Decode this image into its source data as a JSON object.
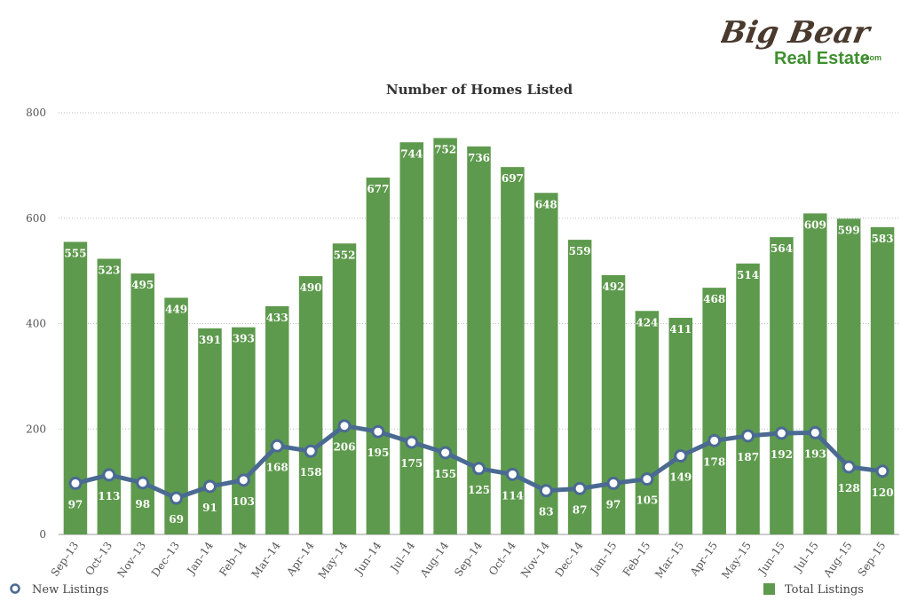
{
  "brand": {
    "logo_word1": "Big Bear",
    "logo_word2": "Real Estate",
    "logo_suffix": ".com",
    "color_brown": "#4a3a2e",
    "color_green": "#3f8f2f"
  },
  "chart_data": {
    "type": "bar",
    "title": "Number of Homes Listed",
    "categories": [
      "Sep–13",
      "Oct–13",
      "Nov–13",
      "Dec–13",
      "Jan–14",
      "Feb–14",
      "Mar–14",
      "Apr–14",
      "May–14",
      "Jun–14",
      "Jul–14",
      "Aug–14",
      "Sep–14",
      "Oct–14",
      "Nov–14",
      "Dec–14",
      "Jan–15",
      "Feb–15",
      "Mar–15",
      "Apr–15",
      "May–15",
      "Jun–15",
      "Jul–15",
      "Aug–15",
      "Sep–15"
    ],
    "series": [
      {
        "name": "Total Listings",
        "type": "bar",
        "color": "#5e9a4d",
        "values": [
          555,
          523,
          495,
          449,
          391,
          393,
          433,
          490,
          552,
          677,
          744,
          752,
          736,
          697,
          648,
          559,
          492,
          424,
          411,
          468,
          514,
          564,
          609,
          599,
          583
        ]
      },
      {
        "name": "New Listings",
        "type": "line",
        "color": "#4a6a92",
        "values": [
          97,
          113,
          98,
          69,
          91,
          103,
          168,
          158,
          206,
          195,
          175,
          155,
          125,
          114,
          83,
          87,
          97,
          105,
          149,
          178,
          187,
          192,
          193,
          128,
          120
        ]
      }
    ],
    "yticks": [
      0,
      200,
      400,
      600,
      800
    ],
    "ylim": [
      0,
      800
    ],
    "grid": true,
    "legend": {
      "left": "New Listings",
      "right": "Total Listings",
      "placement": "bottom"
    }
  }
}
